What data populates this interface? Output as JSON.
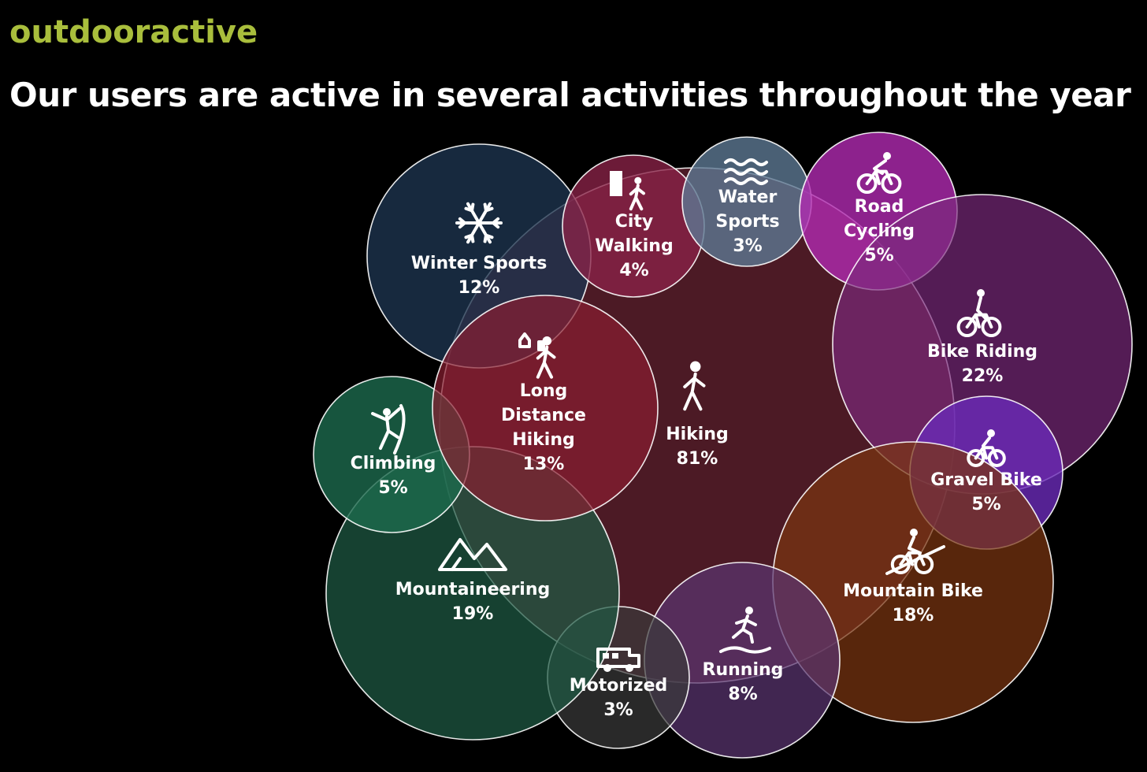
{
  "header": {
    "brand": "outdooractive",
    "headline": "Our users are active in several activities throughout the year"
  },
  "activities": [
    {
      "id": "hiking",
      "name": [
        "Hiking"
      ],
      "percent": "81%",
      "value": 81,
      "color": "#7a2a3c",
      "icon": "hiking-icon"
    },
    {
      "id": "winter-sports",
      "name": [
        "Winter Sports"
      ],
      "percent": "12%",
      "value": 12,
      "color": "#1e3550",
      "icon": "snowflake-icon"
    },
    {
      "id": "city-walking",
      "name": [
        "City",
        "Walking"
      ],
      "percent": "4%",
      "value": 4,
      "color": "#8a2248",
      "icon": "city-walking-icon"
    },
    {
      "id": "water-sports",
      "name": [
        "Water",
        "Sports"
      ],
      "percent": "3%",
      "value": 3,
      "color": "#5d7892",
      "icon": "waves-icon"
    },
    {
      "id": "road-cycling",
      "name": [
        "Road",
        "Cycling"
      ],
      "percent": "5%",
      "value": 5,
      "color": "#b02bb0",
      "icon": "road-cycling-icon"
    },
    {
      "id": "bike-riding",
      "name": [
        "Bike Riding"
      ],
      "percent": "22%",
      "value": 22,
      "color": "#7c2a7e",
      "icon": "bike-icon"
    },
    {
      "id": "gravel-bike",
      "name": [
        "Gravel Bike"
      ],
      "percent": "5%",
      "value": 5,
      "color": "#6a2ab8",
      "icon": "gravel-bike-icon"
    },
    {
      "id": "mountain-bike",
      "name": [
        "Mountain Bike"
      ],
      "percent": "18%",
      "value": 18,
      "color": "#7a3510",
      "icon": "mountain-bike-icon"
    },
    {
      "id": "running",
      "name": [
        "Running"
      ],
      "percent": "8%",
      "value": 8,
      "color": "#5a3470",
      "icon": "running-icon"
    },
    {
      "id": "motorized",
      "name": [
        "Motorized"
      ],
      "percent": "3%",
      "value": 3,
      "color": "#3a3a3a",
      "icon": "camper-van-icon"
    },
    {
      "id": "mountaineering",
      "name": [
        "Mountaineering"
      ],
      "percent": "19%",
      "value": 19,
      "color": "#1e5a44",
      "icon": "mountain-icon"
    },
    {
      "id": "climbing",
      "name": [
        "Climbing"
      ],
      "percent": "5%",
      "value": 5,
      "color": "#1d6a4e",
      "icon": "climbing-icon"
    },
    {
      "id": "long-distance-hiking",
      "name": [
        "Long",
        "Distance",
        "Hiking"
      ],
      "percent": "13%",
      "value": 13,
      "color": "#8a1e30",
      "icon": "long-distance-hiking-icon"
    }
  ]
}
